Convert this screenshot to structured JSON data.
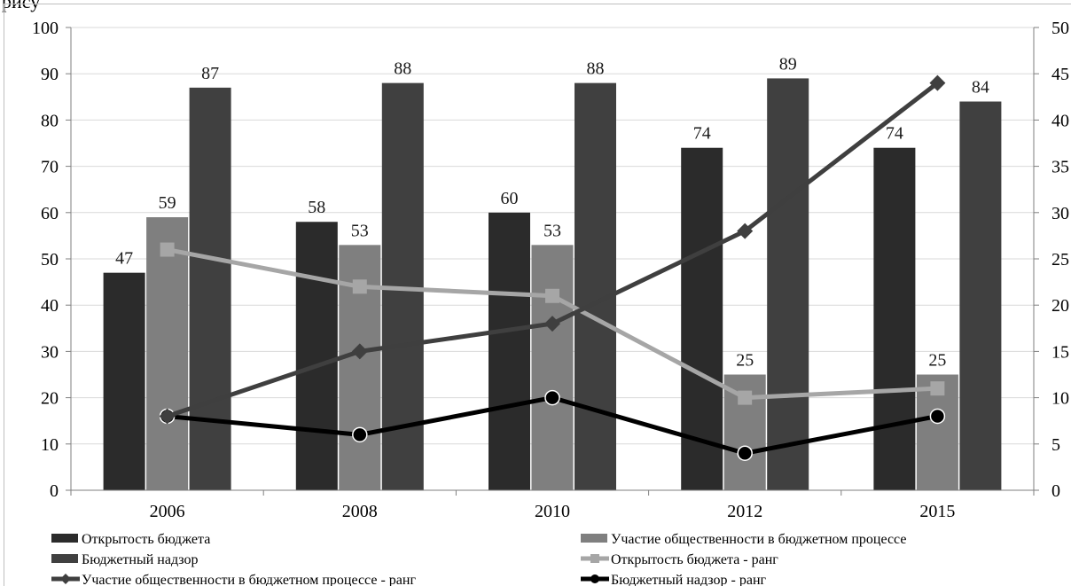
{
  "page": {
    "cropped_caption": "рису"
  },
  "chart_data": {
    "type": "bar",
    "categories": [
      "2006",
      "2008",
      "2010",
      "2012",
      "2015"
    ],
    "ylim": [
      0,
      100
    ],
    "yticks": [
      "0",
      "10",
      "20",
      "30",
      "40",
      "50",
      "60",
      "70",
      "80",
      "90",
      "100"
    ],
    "y2lim": [
      0,
      50
    ],
    "y2ticks": [
      "0",
      "5",
      "10",
      "15",
      "20",
      "25",
      "30",
      "35",
      "40",
      "45",
      "50"
    ],
    "grid": true,
    "legend_position": "bottom",
    "bar_series": [
      {
        "name": "Открытость бюджета",
        "color": "#2b2b2b",
        "values": [
          47,
          58,
          60,
          74,
          74
        ],
        "labels": [
          "47",
          "58",
          "60",
          "74",
          "74"
        ]
      },
      {
        "name": "Участие общественности в бюджетном процессе",
        "color": "#7f7f7f",
        "values": [
          59,
          53,
          53,
          25,
          25
        ],
        "labels": [
          "59",
          "53",
          "53",
          "25",
          "25"
        ]
      },
      {
        "name": "Бюджетный надзор",
        "color": "#404040",
        "values": [
          87,
          88,
          88,
          89,
          84
        ],
        "labels": [
          "87",
          "88",
          "88",
          "89",
          "84"
        ]
      }
    ],
    "line_series": [
      {
        "name": "Открытость бюджета - ранг",
        "color": "#a6a6a6",
        "marker": "square",
        "axis": "secondary",
        "values": [
          26,
          22,
          21,
          10,
          11
        ]
      },
      {
        "name": "Бюджетный надзор - ранг",
        "color": "#000000",
        "marker": "circle",
        "axis": "secondary",
        "values": [
          8,
          6,
          10,
          4,
          8
        ]
      },
      {
        "name": "Участие общественности в бюджетном процессе - ранг",
        "color": "#3f3f3f",
        "marker": "diamond",
        "axis": "secondary",
        "values": [
          8,
          15,
          18,
          28,
          44
        ]
      }
    ],
    "legend_order": [
      0,
      1,
      2,
      3,
      4,
      5
    ]
  }
}
